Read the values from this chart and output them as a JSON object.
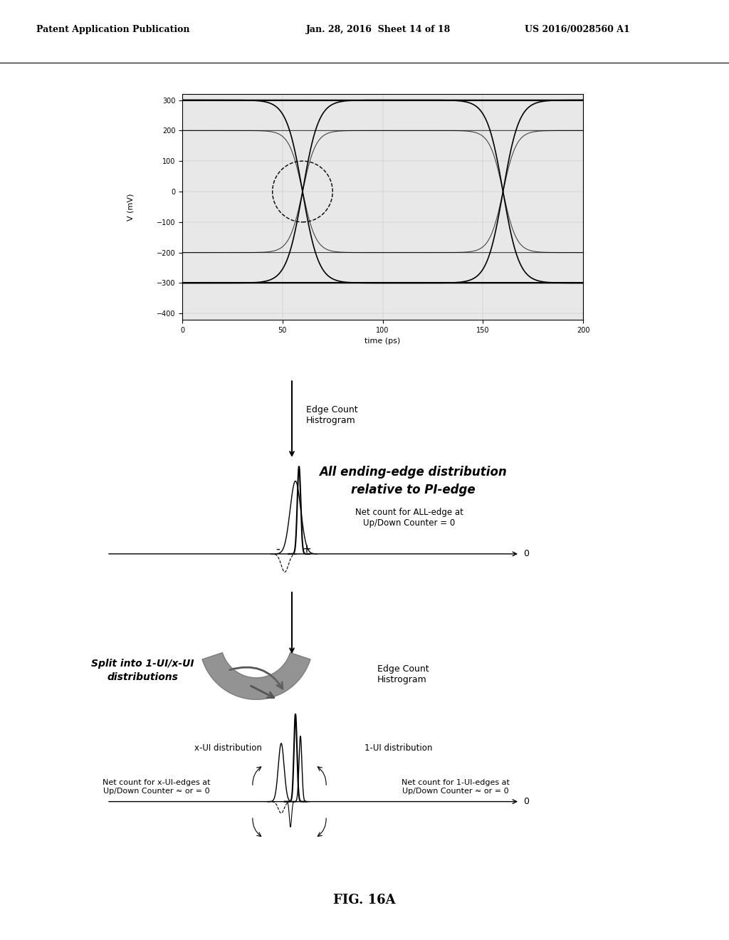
{
  "bg_color": "#ffffff",
  "header_left": "Patent Application Publication",
  "header_mid": "Jan. 28, 2016  Sheet 14 of 18",
  "header_right": "US 2016/0028560 A1",
  "fig_label": "FIG. 16A",
  "waveform": {
    "xlim": [
      0.0,
      200.0
    ],
    "ylim": [
      -420.0,
      320.0
    ],
    "yticks": [
      300.0,
      200.0,
      100.0,
      0.0,
      -100.0,
      -200.0,
      -300.0,
      -400.0
    ],
    "xticks": [
      0.0,
      50.0,
      100.0,
      150.0,
      200.0
    ],
    "xlabel": "time (ps)",
    "ylabel": "V (mV)",
    "bg_color": "#e8e8e8"
  },
  "arrow1_label": "Edge Count\nHistrogram",
  "bold_text": "All ending-edge distribution\nrelative to PI-edge",
  "text1": "Net count for ALL-edge at\nUp/Down Counter = 0",
  "hist1_label": "Edge Count\nHistrogram",
  "split_text": "Split into 1-UI/x-UI\ndistributions",
  "xui_label": "x-UI distribution",
  "oneui_label": "1-UI distribution",
  "xui_count": "Net count for x-UI-edges at\nUp/Down Counter ≈ or = 0",
  "oneui_count": "Net count for 1-UI-edges at\nUp/Down Counter ≈ or = 0",
  "zero_label": "0"
}
